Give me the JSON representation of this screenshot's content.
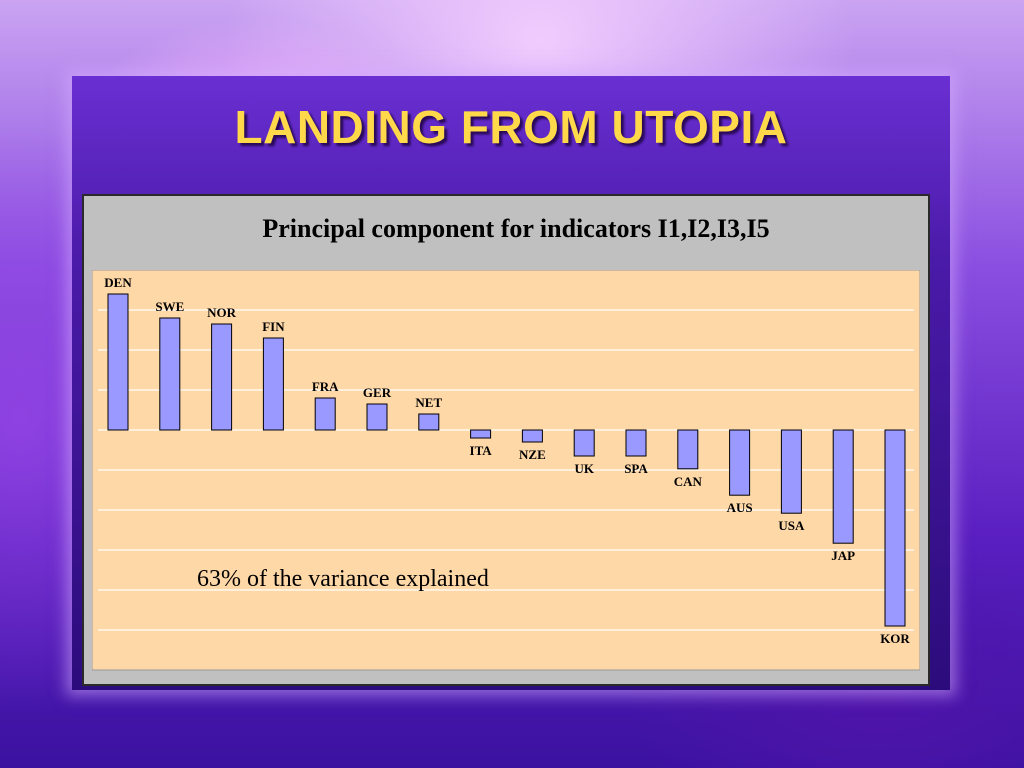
{
  "slide": {
    "title": "LANDING FROM UTOPIA"
  },
  "colors": {
    "title": "#ffd94a",
    "plot_area": "#ffd8a8",
    "bar_fill": "#9999ff",
    "bar_stroke": "#000000",
    "grid": "#ffffff",
    "frame": "#c0c0c0"
  },
  "chart_data": {
    "type": "bar",
    "title": "Principal component for indicators I1,I2,I3,I5",
    "xlabel": "",
    "ylabel": "",
    "categories": [
      "DEN",
      "SWE",
      "NOR",
      "FIN",
      "FRA",
      "GER",
      "NET",
      "ITA",
      "NZE",
      "UK",
      "SPA",
      "CAN",
      "AUS",
      "USA",
      "JAP",
      "KOR"
    ],
    "values": [
      3.4,
      2.8,
      2.65,
      2.3,
      0.8,
      0.65,
      0.4,
      -0.2,
      -0.3,
      -0.65,
      -0.65,
      -0.97,
      -1.63,
      -2.08,
      -2.83,
      -4.9
    ],
    "ylim": [
      -6,
      4
    ],
    "grid": true,
    "annotation": "63% of the variance explained"
  }
}
